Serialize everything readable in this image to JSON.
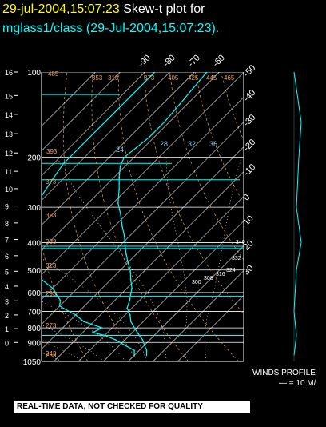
{
  "header": {
    "date": "29-jul-2004,15:07:23",
    "title": "Skew-t plot for",
    "subtitle": "mglass1/class (29-Jul-2004,15:07:23)."
  },
  "footer": {
    "disclaimer": "REAL-TIME DATA, NOT CHECKED FOR QUALITY",
    "winds_label": "WINDS PROFILE",
    "winds_scale": "— = 10 M/"
  },
  "colors": {
    "trace": "#00ffff",
    "grid": "#ffffff",
    "dry_adiabat": "#e8a060",
    "moist_adiabat": "#ffffff",
    "mixing_ratio": "#87ceeb",
    "km_labels": "#ffffff",
    "isobar_labels": "#ffffff"
  },
  "chart_data": {
    "type": "line",
    "chart_kind": "skew-t",
    "temperature_ticks": [
      "-90",
      "-80",
      "-70",
      "-60",
      "-50",
      "-40",
      "-30",
      "-20",
      "-10",
      "0",
      "10",
      "20",
      "30"
    ],
    "pressure_levels": [
      100,
      200,
      300,
      400,
      500,
      600,
      700,
      800,
      900,
      1050
    ],
    "pressure_labels": [
      "100",
      "200",
      "300",
      "400",
      "500",
      "600",
      "700",
      "800",
      "900",
      "1050"
    ],
    "height_km_labels": [
      "16",
      "15",
      "14",
      "13",
      "12",
      "11",
      "10",
      "9",
      "8",
      "7",
      "6",
      "5",
      "4",
      "3",
      "2",
      "1",
      "0"
    ],
    "height_km_pressure": [
      100,
      121,
      141,
      165,
      193,
      224,
      258,
      297,
      341,
      390,
      445,
      505,
      570,
      642,
      720,
      805,
      900
    ],
    "mixing_ratio_labels": [
      "28",
      "32",
      "36",
      "24"
    ],
    "dry_adiabat_labels": [
      "393",
      "373",
      "353",
      "333",
      "313",
      "293",
      "273",
      "253",
      "313",
      "353",
      "373",
      "405",
      "425",
      "445",
      "465",
      "485",
      "243"
    ],
    "moist_adiabat_labels": [
      "300",
      "308",
      "316",
      "324",
      "332",
      "340"
    ],
    "series": [
      {
        "role": "temperature",
        "points": [
          [
            25,
            1000
          ],
          [
            23,
            960
          ],
          [
            20,
            920
          ],
          [
            17,
            880
          ],
          [
            14,
            850
          ],
          [
            12,
            830
          ],
          [
            9,
            800
          ],
          [
            5,
            760
          ],
          [
            2,
            720
          ],
          [
            0,
            700
          ],
          [
            -2,
            680
          ],
          [
            -4,
            640
          ],
          [
            -6,
            610
          ],
          [
            -8,
            580
          ],
          [
            -12,
            540
          ],
          [
            -16,
            500
          ],
          [
            -20,
            470
          ],
          [
            -24,
            440
          ],
          [
            -28,
            410
          ],
          [
            -32,
            380
          ],
          [
            -37,
            350
          ],
          [
            -42,
            320
          ],
          [
            -48,
            290
          ],
          [
            -53,
            260
          ],
          [
            -58,
            235
          ],
          [
            -62,
            215
          ],
          [
            -64,
            200
          ],
          [
            -63,
            185
          ],
          [
            -62,
            170
          ],
          [
            -62,
            150
          ],
          [
            -63,
            130
          ],
          [
            -64,
            115
          ],
          [
            -65,
            100
          ]
        ]
      },
      {
        "role": "dewpoint",
        "points": [
          [
            20,
            1000
          ],
          [
            18,
            960
          ],
          [
            12,
            920
          ],
          [
            6,
            880
          ],
          [
            0,
            850
          ],
          [
            -6,
            830
          ],
          [
            -4,
            800
          ],
          [
            -14,
            760
          ],
          [
            -20,
            720
          ],
          [
            -26,
            690
          ],
          [
            -30,
            670
          ],
          [
            -32,
            640
          ],
          [
            -36,
            610
          ],
          [
            -40,
            580
          ],
          [
            -48,
            540
          ],
          [
            -52,
            510
          ],
          [
            -62,
            470
          ],
          [
            -66,
            430
          ],
          [
            -70,
            410
          ],
          [
            -72,
            380
          ],
          [
            -76,
            350
          ],
          [
            -78,
            320
          ],
          [
            -80,
            300
          ],
          [
            -82,
            270
          ],
          [
            -84,
            240
          ],
          [
            -86,
            210
          ],
          [
            -86,
            180
          ],
          [
            -86,
            150
          ],
          [
            -86,
            120
          ],
          [
            -86,
            100
          ]
        ]
      }
    ],
    "wind_profile": {
      "points": [
        [
          100,
          0
        ],
        [
          150,
          3
        ],
        [
          200,
          2
        ],
        [
          300,
          1
        ],
        [
          400,
          3
        ],
        [
          500,
          1
        ],
        [
          700,
          0
        ],
        [
          850,
          1
        ],
        [
          1000,
          0
        ]
      ]
    }
  }
}
